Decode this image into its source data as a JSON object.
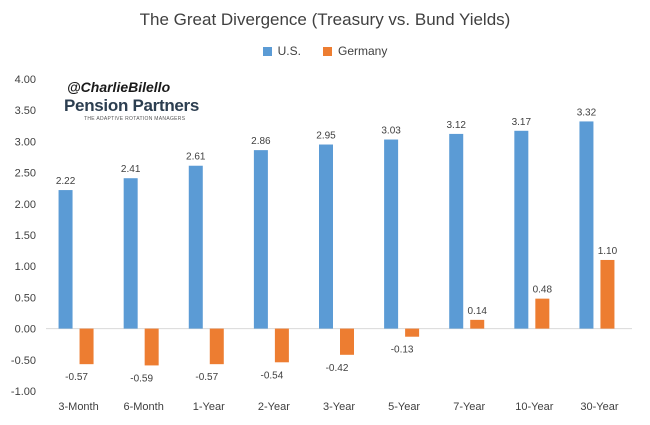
{
  "chart_data": {
    "type": "bar",
    "title": "The Great Divergence (Treasury vs. Bund Yields)",
    "categories": [
      "3-Month",
      "6-Month",
      "1-Year",
      "2-Year",
      "3-Year",
      "5-Year",
      "7-Year",
      "10-Year",
      "30-Year"
    ],
    "series": [
      {
        "name": "U.S.",
        "color": "#5b9bd5",
        "values": [
          2.22,
          2.41,
          2.61,
          2.86,
          2.95,
          3.03,
          3.12,
          3.17,
          3.32
        ],
        "labels": [
          "2.22",
          "2.41",
          "2.61",
          "2.86",
          "2.95",
          "3.03",
          "3.12",
          "3.17",
          "3.32"
        ]
      },
      {
        "name": "Germany",
        "color": "#ed7d31",
        "values": [
          -0.57,
          -0.59,
          -0.57,
          -0.54,
          -0.42,
          -0.13,
          0.14,
          0.48,
          1.1
        ],
        "labels": [
          "-0.57",
          "-0.59",
          "-0.57",
          "-0.54",
          "-0.42",
          "-0.13",
          "0.14",
          "0.48",
          "1.10"
        ]
      }
    ],
    "ylim": [
      -1.0,
      4.0
    ],
    "yticks": [
      "4.00",
      "3.50",
      "3.00",
      "2.50",
      "2.00",
      "1.50",
      "1.00",
      "0.50",
      "0.00",
      "-0.50",
      "-1.00"
    ],
    "xlabel": "",
    "ylabel": "",
    "grid": false,
    "legend_position": "top"
  },
  "watermark": {
    "handle": "@CharlieBilello",
    "logo": "Pension Partners",
    "tagline": "THE ADAPTIVE ROTATION MANAGERS"
  }
}
